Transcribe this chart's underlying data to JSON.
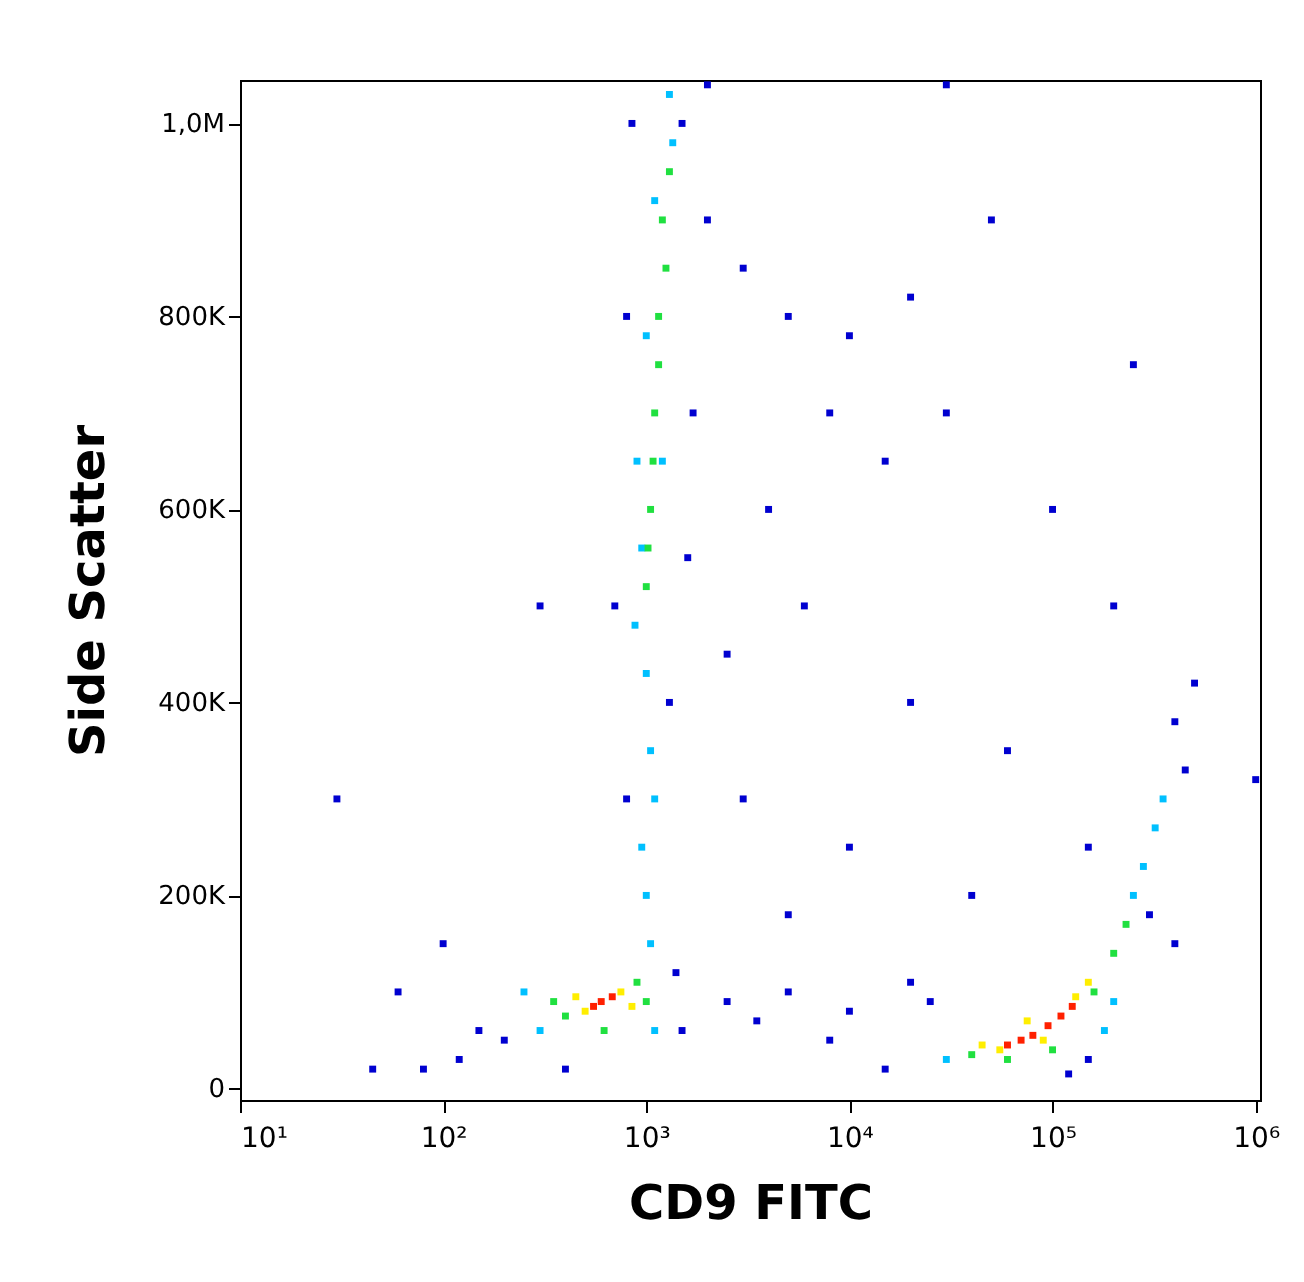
{
  "chart_data": {
    "type": "scatter",
    "xlabel": "CD9 FITC",
    "ylabel": "Side Scatter",
    "log": "x",
    "grid": false,
    "marker": "square",
    "xlim": [
      10,
      1050000
    ],
    "ylim": [
      -12000,
      1045000
    ],
    "xticks": [
      {
        "value": 10,
        "label": "10¹"
      },
      {
        "value": 100,
        "label": "10²"
      },
      {
        "value": 1000,
        "label": "10³"
      },
      {
        "value": 10000,
        "label": "10⁴"
      },
      {
        "value": 100000,
        "label": "10⁵"
      },
      {
        "value": 1000000,
        "label": "10⁶"
      }
    ],
    "yticks": [
      0,
      {
        "value": 200000,
        "label": "200K"
      },
      {
        "value": 400000,
        "label": "400K"
      },
      {
        "value": 600000,
        "label": "600K"
      },
      {
        "value": 800000,
        "label": "800K"
      },
      {
        "value": 1000000,
        "label": "1,0M"
      }
    ],
    "series": [
      {
        "color": "#0000d0",
        "x": [
          200,
          150,
          120,
          80,
          60,
          100,
          1400,
          1500,
          800,
          1300,
          700,
          1600,
          800,
          1500,
          1700,
          850,
          2000,
          3000,
          5000,
          10000,
          20000,
          50000,
          8000,
          15000,
          30000,
          4000,
          6000,
          100000,
          2500,
          20000,
          60000,
          3000,
          10000,
          150000,
          5000,
          40000,
          2500,
          5000,
          10000,
          20000,
          3500,
          8000,
          15000,
          25000,
          400000,
          500000,
          450000,
          300000,
          2000,
          30000,
          200000,
          250000,
          400000,
          1000000,
          30,
          45,
          150000,
          120000,
          400,
          300
        ],
        "values": [
          50000,
          60000,
          30000,
          20000,
          100000,
          150000,
          120000,
          60000,
          300000,
          400000,
          500000,
          550000,
          800000,
          1000000,
          700000,
          1000000,
          900000,
          850000,
          800000,
          780000,
          820000,
          900000,
          700000,
          650000,
          700000,
          600000,
          500000,
          600000,
          450000,
          400000,
          350000,
          300000,
          250000,
          250000,
          180000,
          200000,
          90000,
          100000,
          80000,
          110000,
          70000,
          50000,
          20000,
          90000,
          380000,
          420000,
          330000,
          180000,
          1040000,
          1040000,
          500000,
          750000,
          150000,
          320000,
          300000,
          20000,
          30000,
          15000,
          20000,
          500000
        ]
      },
      {
        "color": "#00c0ff",
        "x": [
          1300,
          1350,
          1100,
          1000,
          900,
          950,
          880,
          1200,
          1000,
          1050,
          950,
          1100,
          1000,
          1050,
          300,
          1100,
          250,
          280000,
          320000,
          350000,
          250000,
          30000,
          180000,
          200000
        ],
        "values": [
          1030000,
          980000,
          920000,
          780000,
          650000,
          560000,
          480000,
          650000,
          430000,
          350000,
          250000,
          300000,
          200000,
          150000,
          60000,
          60000,
          100000,
          230000,
          270000,
          300000,
          200000,
          30000,
          60000,
          90000
        ]
      },
      {
        "color": "#20e040",
        "x": [
          400,
          900,
          350,
          1000,
          620,
          1200,
          1150,
          1100,
          1050,
          1000,
          1300,
          1250,
          1080,
          1020,
          1150,
          40000,
          160000,
          200000,
          100000,
          60000,
          230000
        ],
        "values": [
          75000,
          110000,
          90000,
          90000,
          60000,
          900000,
          800000,
          700000,
          600000,
          520000,
          950000,
          850000,
          650000,
          560000,
          750000,
          35000,
          100000,
          140000,
          40000,
          30000,
          170000
        ]
      },
      {
        "color": "#ffee00",
        "x": [
          500,
          750,
          450,
          850,
          55000,
          90000,
          130000,
          150000,
          75000,
          45000
        ],
        "values": [
          80000,
          100000,
          95000,
          85000,
          40000,
          50000,
          95000,
          110000,
          70000,
          45000
        ]
      },
      {
        "color": "#ff2000",
        "x": [
          600,
          680,
          550,
          80000,
          95000,
          70000,
          110000,
          60000,
          125000
        ],
        "values": [
          90000,
          95000,
          85000,
          55000,
          65000,
          50000,
          75000,
          45000,
          85000
        ]
      }
    ]
  }
}
